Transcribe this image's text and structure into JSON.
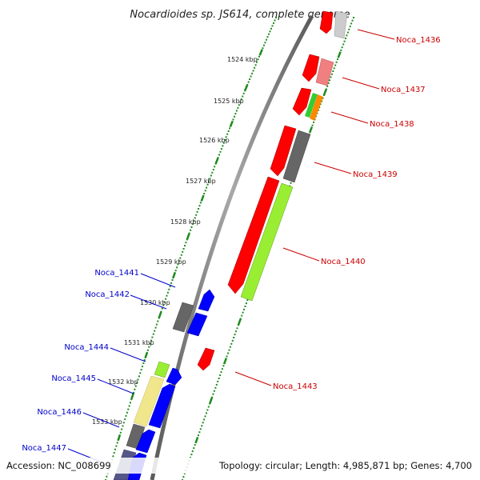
{
  "title": "Nocardioides sp. JS614, complete genome",
  "footer": {
    "accession": "Accession: NC_008699",
    "summary": "Topology: circular; Length: 4,985,871 bp; Genes: 4,700"
  },
  "colors": {
    "forward_label": "#cc0000",
    "reverse_label": "#0000cc",
    "backbone": "#8a8a8a",
    "dots": "#1e8a1e",
    "ticks": "#1e8a1e"
  },
  "scale_labels": [
    "1524 kbp",
    "1525 kbp",
    "1526 kbp",
    "1527 kbp",
    "1528 kbp",
    "1529 kbp",
    "1530 kbp",
    "1531 kbp",
    "1532 kbp",
    "1533 kbp"
  ],
  "forward_genes": [
    {
      "name": "Noca_1436",
      "color": "#ff0000",
      "color2": "#cccccc"
    },
    {
      "name": "Noca_1437",
      "color": "#ff0000",
      "color2": "#f08080"
    },
    {
      "name": "Noca_1438",
      "color": "#ff0000",
      "color2": "#33cc33",
      "color3": "#ff8800"
    },
    {
      "name": "Noca_1439",
      "color": "#ff0000",
      "color2": "#666666"
    },
    {
      "name": "Noca_1440",
      "color": "#ff0000",
      "color2": "#99ee33"
    },
    {
      "name": "Noca_1443",
      "color": "#ff0000"
    }
  ],
  "reverse_genes": [
    {
      "name": "Noca_1441",
      "color": "#0000ff",
      "color2": "#666666"
    },
    {
      "name": "Noca_1442",
      "color": "#0000ff"
    },
    {
      "name": "Noca_1444",
      "color": "#0000ff",
      "color2": "#99ee33"
    },
    {
      "name": "Noca_1445",
      "color": "#0000ff",
      "color2": "#f0e68c"
    },
    {
      "name": "Noca_1446",
      "color": "#0000ff",
      "color2": "#666666"
    },
    {
      "name": "Noca_1447",
      "color": "#0000ff",
      "color2": "#555588"
    }
  ]
}
